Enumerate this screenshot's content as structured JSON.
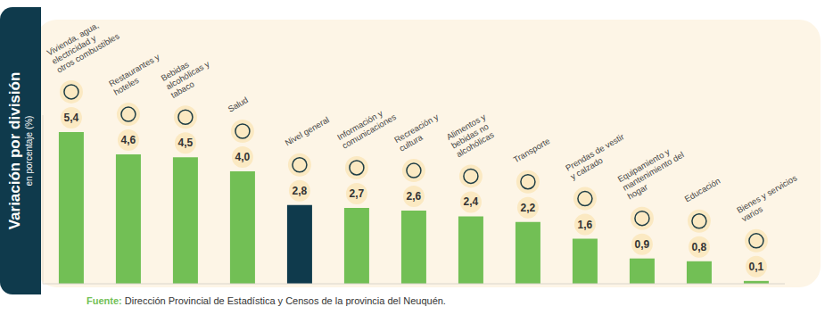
{
  "chart_data": {
    "type": "bar",
    "ylabel": "Variación por división",
    "ylabel_sub": "en porcentaje (%)",
    "categories": [
      "Vivienda, agua, electricidad y otros combustibles",
      "Restaurantes y hoteles",
      "Bebidas alcohólicas y tabaco",
      "Salud",
      "Nivel general",
      "Información y comunicaciones",
      "Recreación y cultura",
      "Alimentos y bebidas no alcohólicas",
      "Transporte",
      "Prendas de vestir y calzado",
      "Equipamiento y mantenimiento del hogar",
      "Educación",
      "Bienes y servicios varios"
    ],
    "values": [
      5.4,
      4.6,
      4.5,
      4.0,
      2.8,
      2.7,
      2.6,
      2.4,
      2.2,
      1.6,
      0.9,
      0.8,
      0.1
    ],
    "value_labels": [
      "5,4",
      "4,6",
      "4,5",
      "4,0",
      "2,8",
      "2,7",
      "2,6",
      "2,4",
      "2,2",
      "1,6",
      "0,9",
      "0,8",
      "0,1"
    ],
    "colors": [
      "#72bf55",
      "#72bf55",
      "#72bf55",
      "#72bf55",
      "#0f3a4c",
      "#72bf55",
      "#72bf55",
      "#72bf55",
      "#72bf55",
      "#72bf55",
      "#72bf55",
      "#72bf55",
      "#72bf55"
    ],
    "ylim": [
      0,
      6
    ],
    "data_labels": true,
    "tick_labels": false,
    "grid": false,
    "source_label": "Fuente:",
    "source": "Dirección Provincial de Estadística y Censos de la provincia del Neuquén."
  }
}
